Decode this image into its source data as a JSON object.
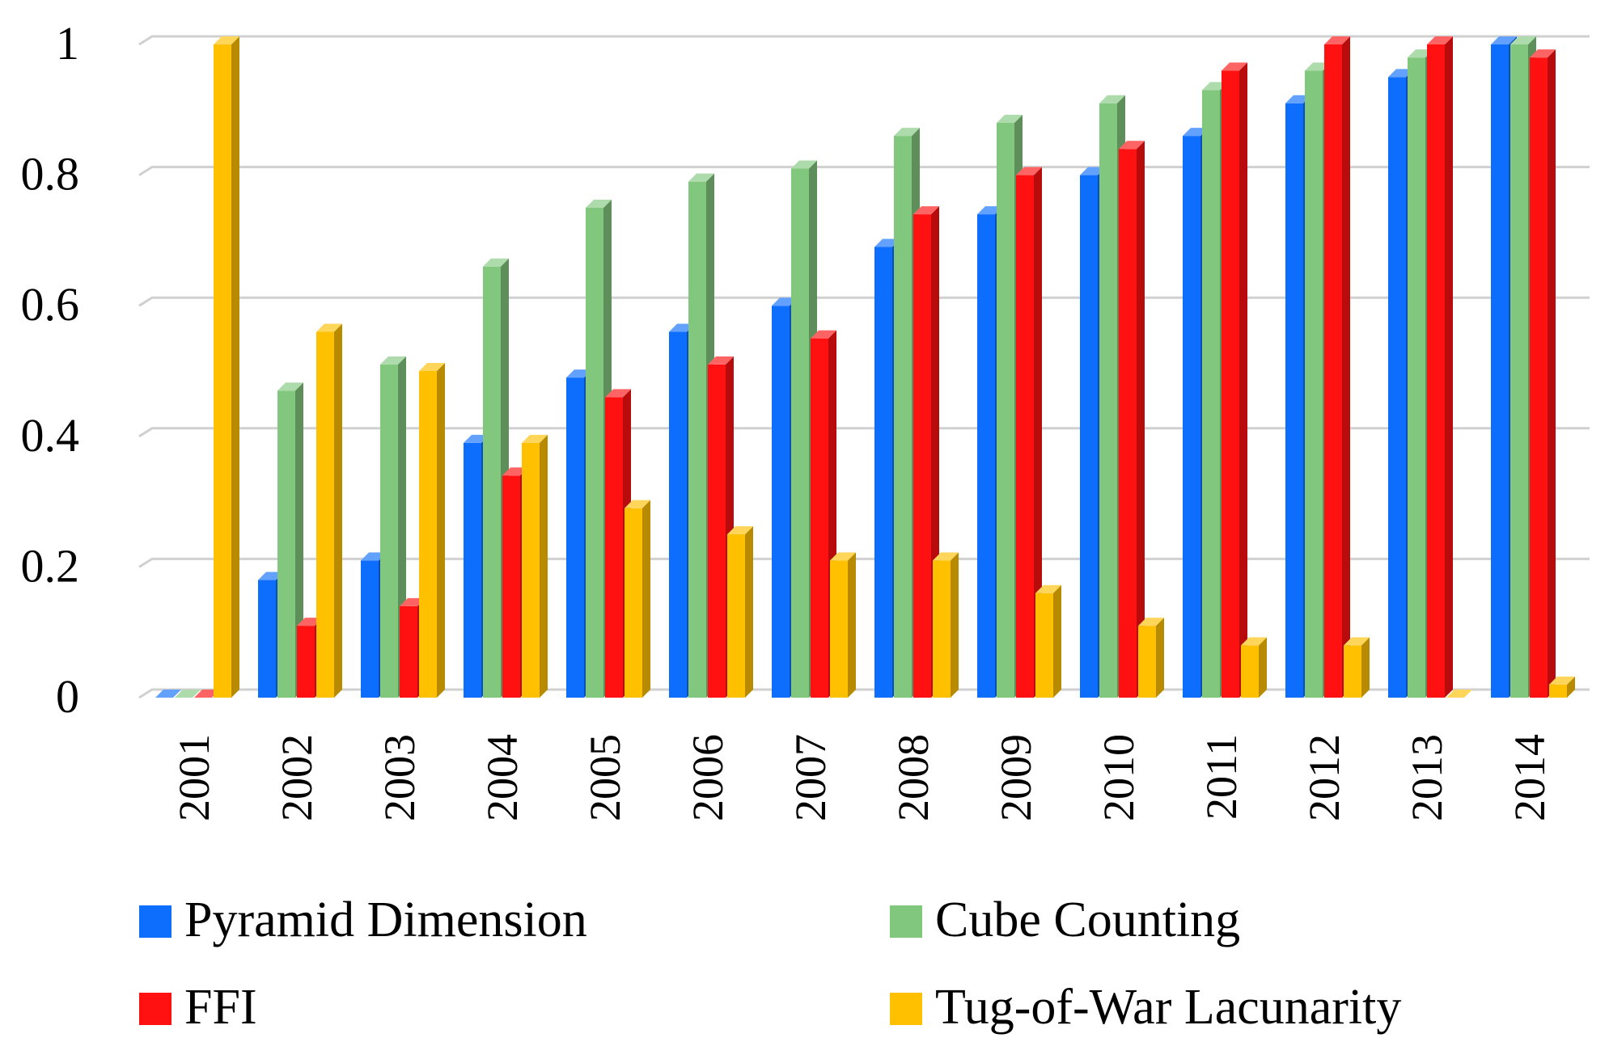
{
  "chart_data": {
    "type": "bar",
    "style": "3d-clustered-column",
    "title": "",
    "xlabel": "",
    "ylabel": "",
    "ylim": [
      0,
      1
    ],
    "yticks": [
      "0",
      "0.2",
      "0.4",
      "0.6",
      "0.8",
      "1"
    ],
    "grid": true,
    "legend_position": "bottom",
    "categories": [
      "2001",
      "2002",
      "2003",
      "2004",
      "2005",
      "2006",
      "2007",
      "2008",
      "2009",
      "2010",
      "2011",
      "2012",
      "2013",
      "2014"
    ],
    "series": [
      {
        "name": "Pyramid Dimension",
        "color": "#0d6efd",
        "values": [
          0,
          0.18,
          0.21,
          0.39,
          0.49,
          0.56,
          0.6,
          0.69,
          0.74,
          0.8,
          0.86,
          0.91,
          0.95,
          1.0
        ]
      },
      {
        "name": "Cube Counting",
        "color": "#82c77e",
        "values": [
          0,
          0.47,
          0.51,
          0.66,
          0.75,
          0.79,
          0.81,
          0.86,
          0.88,
          0.91,
          0.93,
          0.96,
          0.98,
          1.0
        ]
      },
      {
        "name": "FFI",
        "color": "#ff1111",
        "values": [
          0,
          0.11,
          0.14,
          0.34,
          0.46,
          0.51,
          0.55,
          0.74,
          0.8,
          0.84,
          0.96,
          1.0,
          1.0,
          0.98
        ]
      },
      {
        "name": "Tug-of-War Lacunarity",
        "color": "#ffc000",
        "values": [
          1.0,
          0.56,
          0.5,
          0.39,
          0.29,
          0.25,
          0.21,
          0.21,
          0.16,
          0.11,
          0.08,
          0.08,
          0,
          0.02
        ]
      }
    ]
  }
}
